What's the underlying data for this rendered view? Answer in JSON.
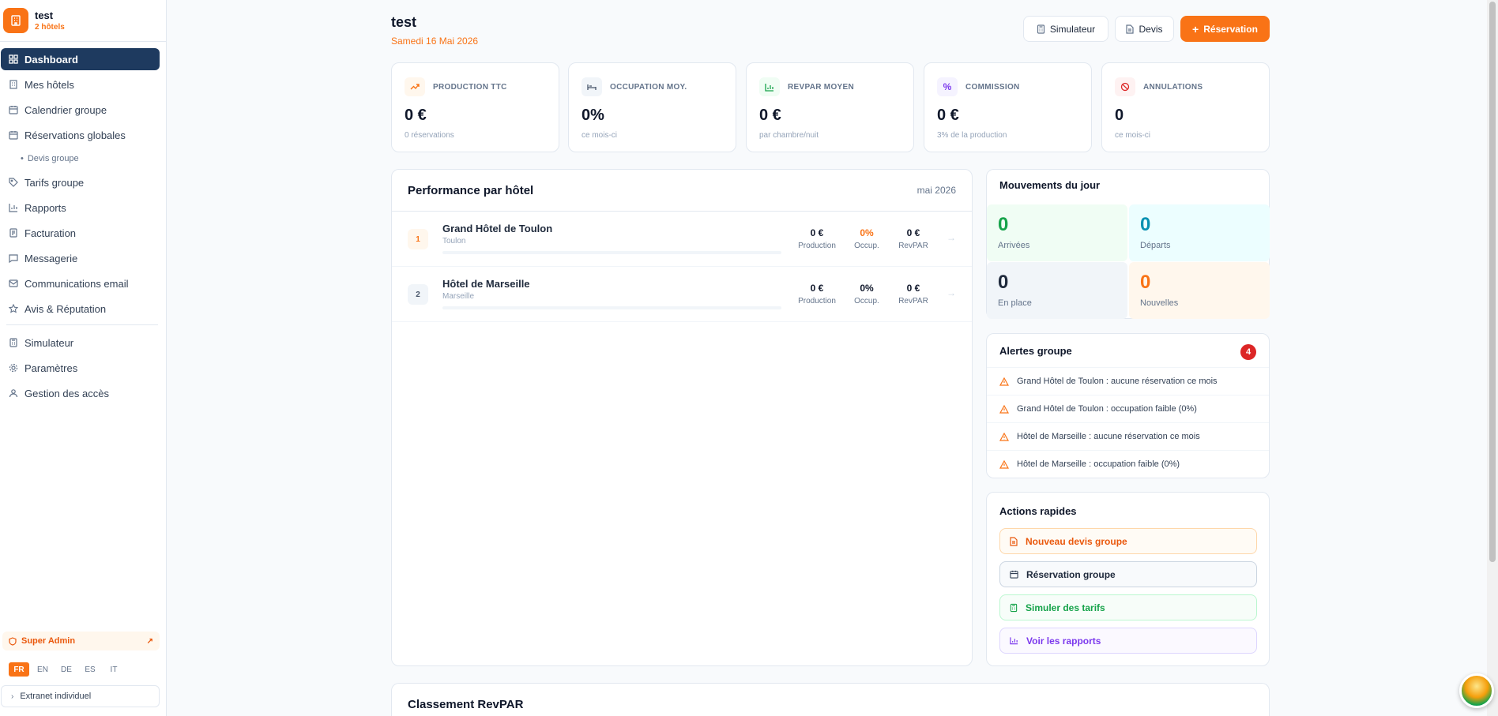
{
  "brand": {
    "name": "test",
    "subtitle": "2 hôtels"
  },
  "sidebar": {
    "items": [
      {
        "label": "Dashboard",
        "icon": "grid-icon",
        "active": true
      },
      {
        "label": "Mes hôtels",
        "icon": "building-icon"
      },
      {
        "label": "Calendrier groupe",
        "icon": "calendar-icon"
      },
      {
        "label": "Réservations globales",
        "icon": "calendar-icon"
      },
      {
        "label": "Devis groupe",
        "icon": "dot-icon",
        "sub": true
      },
      {
        "label": "Tarifs groupe",
        "icon": "tag-icon"
      },
      {
        "label": "Rapports",
        "icon": "bar-chart-icon"
      },
      {
        "label": "Facturation",
        "icon": "receipt-icon"
      },
      {
        "label": "Messagerie",
        "icon": "message-icon"
      },
      {
        "label": "Communications email",
        "icon": "mail-icon"
      },
      {
        "label": "Avis & Réputation",
        "icon": "star-icon"
      },
      {
        "label": "Simulateur",
        "icon": "calculator-icon"
      },
      {
        "label": "Paramètres",
        "icon": "gear-icon"
      },
      {
        "label": "Gestion des accès",
        "icon": "users-icon"
      }
    ],
    "super_admin": "Super Admin",
    "languages": [
      "FR",
      "EN",
      "DE",
      "ES",
      "IT"
    ],
    "active_language": "FR",
    "extranet": "Extranet individuel"
  },
  "header": {
    "title": "test",
    "date": "Samedi 16 Mai 2026",
    "buttons": {
      "simulator": "Simulateur",
      "quote": "Devis",
      "reservation": "Réservation"
    }
  },
  "kpis": [
    {
      "label": "PRODUCTION TTC",
      "value": "0 €",
      "sub": "0 réservations",
      "icon": "trending-up-icon",
      "color": "#f97316"
    },
    {
      "label": "OCCUPATION MOY.",
      "value": "0%",
      "sub": "ce mois-ci",
      "icon": "bed-icon",
      "color": "#475569"
    },
    {
      "label": "REVPAR MOYEN",
      "value": "0 €",
      "sub": "par chambre/nuit",
      "icon": "bar-chart-icon",
      "color": "#16a34a"
    },
    {
      "label": "COMMISSION",
      "value": "0 €",
      "sub": "3% de la production",
      "icon": "percent-icon",
      "color": "#7c3aed"
    },
    {
      "label": "ANNULATIONS",
      "value": "0",
      "sub": "ce mois-ci",
      "icon": "ban-icon",
      "color": "#dc2626"
    }
  ],
  "performance": {
    "title": "Performance par hôtel",
    "month": "mai 2026",
    "metric_labels": {
      "production": "Production",
      "occupancy": "Occup.",
      "revpar": "RevPAR"
    },
    "hotels": [
      {
        "rank": "1",
        "name": "Grand Hôtel de Toulon",
        "city": "Toulon",
        "production": "0 €",
        "occupancy": "0%",
        "revpar": "0 €",
        "occupancy_color": "#f97316"
      },
      {
        "rank": "2",
        "name": "Hôtel de Marseille",
        "city": "Marseille",
        "production": "0 €",
        "occupancy": "0%",
        "revpar": "0 €",
        "occupancy_color": "#0f172a"
      }
    ]
  },
  "movements": {
    "title": "Mouvements du jour",
    "cells": [
      {
        "value": "0",
        "label": "Arrivées",
        "color": "#16a34a"
      },
      {
        "value": "0",
        "label": "Départs",
        "color": "#0891b2"
      },
      {
        "value": "0",
        "label": "En place",
        "color": "#1e293b"
      },
      {
        "value": "0",
        "label": "Nouvelles",
        "color": "#f97316"
      }
    ]
  },
  "alerts": {
    "title": "Alertes groupe",
    "count": "4",
    "items": [
      "Grand Hôtel de Toulon : aucune réservation ce mois",
      "Grand Hôtel de Toulon : occupation faible (0%)",
      "Hôtel de Marseille : aucune réservation ce mois",
      "Hôtel de Marseille : occupation faible (0%)"
    ]
  },
  "quick_actions": {
    "title": "Actions rapides",
    "items": [
      {
        "label": "Nouveau devis groupe",
        "icon": "document-icon",
        "color": "#ea580c"
      },
      {
        "label": "Réservation groupe",
        "icon": "calendar-icon",
        "color": "#1e293b"
      },
      {
        "label": "Simuler des tarifs",
        "icon": "calculator-icon",
        "color": "#16a34a"
      },
      {
        "label": "Voir les rapports",
        "icon": "bar-chart-icon",
        "color": "#7c3aed"
      }
    ]
  },
  "ranking": {
    "title": "Classement RevPAR"
  }
}
